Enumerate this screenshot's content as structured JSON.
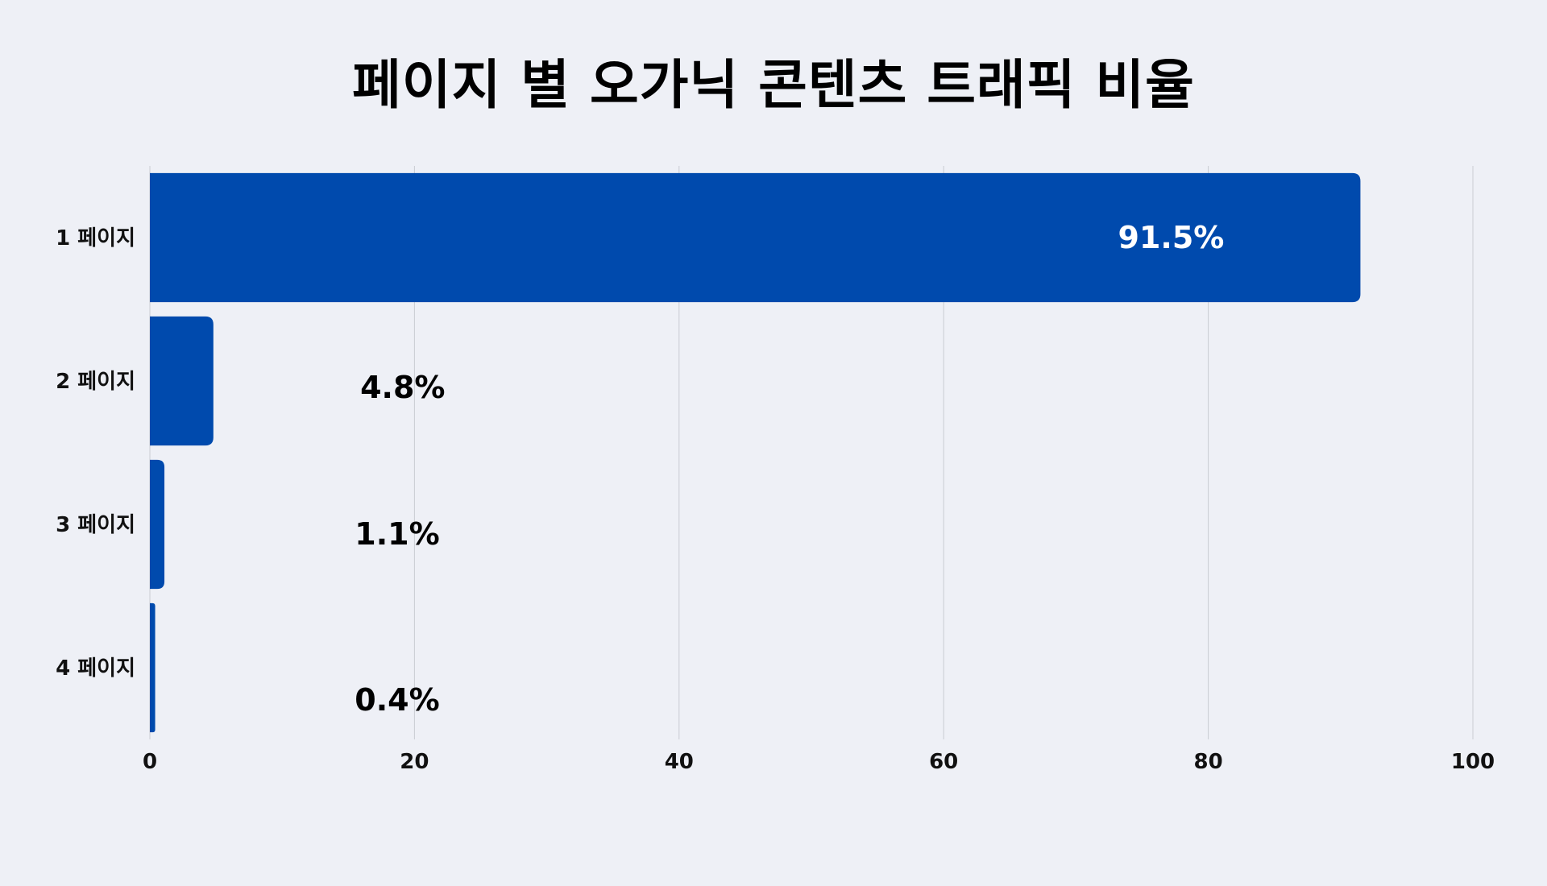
{
  "chart_data": {
    "type": "bar",
    "orientation": "horizontal",
    "title": "페이지 별 오가닉 콘텐츠 트래픽 비율",
    "categories": [
      "1 페이지",
      "2 페이지",
      "3 페이지",
      "4 페이지"
    ],
    "values": [
      91.5,
      4.8,
      1.1,
      0.4
    ],
    "data_labels": [
      "91.5%",
      "4.8%",
      "1.1%",
      "0.4%"
    ],
    "xlim": [
      0,
      100
    ],
    "x_ticks": [
      0,
      20,
      40,
      60,
      80,
      100
    ],
    "x_tick_labels": [
      "0",
      "20",
      "40",
      "60",
      "80",
      "100"
    ],
    "xlabel": "",
    "ylabel": "",
    "grid": "vertical",
    "legend": "none",
    "colors": {
      "bar": "#004aad",
      "background": "#eef0f6",
      "grid": "#c9ccd3",
      "label_inside": "#ffffff",
      "label_outside": "#000000"
    }
  }
}
